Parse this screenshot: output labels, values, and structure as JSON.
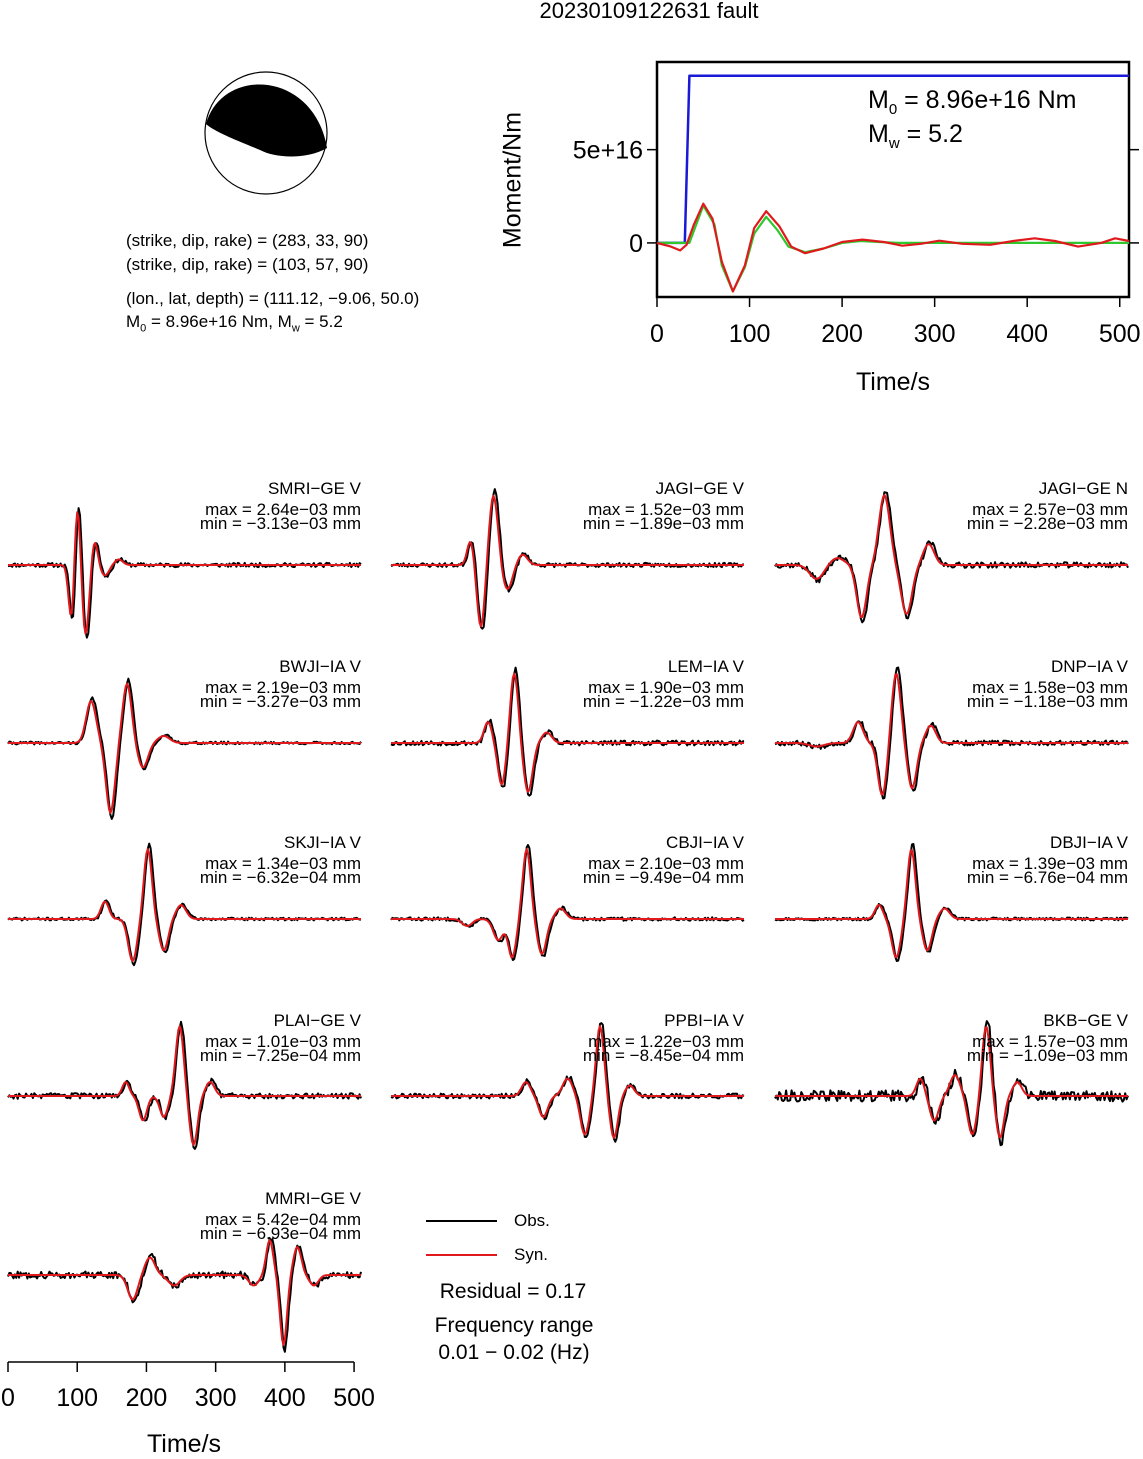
{
  "title": "20230109122631 fault",
  "mechanism": {
    "nodal_plane_1": "(strike, dip, rake) = (283, 33, 90)",
    "nodal_plane_2": "(strike, dip, rake) = (103, 57, 90)",
    "location": "(lon., lat, depth) = (111.12, −9.06, 50.0)",
    "moment_prefix": "M",
    "moment_sub": "0",
    "moment_mid": " = 8.96e+16 Nm, M",
    "mw_sub": "w",
    "mw_val": " = 5.2"
  },
  "stf_panel": {
    "m0_label": "M",
    "m0_sub": "0",
    "m0_value": " = 8.96e+16 Nm",
    "mw_label": "M",
    "mw_sub": "w",
    "mw_value": " = 5.2"
  },
  "legend": {
    "obs": "Obs.",
    "syn": "Syn.",
    "residual": "Residual = 0.17",
    "freq_title": "Frequency range",
    "freq_value": "0.01 − 0.02 (Hz)"
  },
  "colors": {
    "observed": "#000000",
    "synthetic": "#e0191d",
    "cumulative_moment": "#1a1ad6",
    "moment_rate_green": "#2ec82e",
    "moment_rate_red": "#e0191d",
    "beachball_fill": "#000000"
  },
  "chart_data": [
    {
      "type": "line",
      "title": "",
      "xlabel": "Time/s",
      "ylabel": "Moment/Nm",
      "xlim": [
        0,
        510
      ],
      "ylim": [
        -2.9e+16,
        9.7e+16
      ],
      "x_ticks": [
        0,
        100,
        200,
        300,
        400,
        500
      ],
      "y_ticks": [
        {
          "value": 0,
          "label": "0"
        },
        {
          "value": 5e+16,
          "label": "5e+16"
        }
      ],
      "series": [
        {
          "color": "#1a1ad6",
          "points": [
            [
              0,
              0
            ],
            [
              30,
              0
            ],
            [
              35,
              8.96e+16
            ],
            [
              510,
              8.96e+16
            ]
          ]
        },
        {
          "color": "#2ec82e",
          "points": [
            [
              0,
              0
            ],
            [
              35,
              0
            ],
            [
              50,
              2e+16
            ],
            [
              62,
              1e+16
            ],
            [
              70,
              -1.2e+16
            ],
            [
              82,
              -2.6e+16
            ],
            [
              95,
              -1.3e+16
            ],
            [
              105,
              5000000000000000.0
            ],
            [
              118,
              1.4e+16
            ],
            [
              130,
              7000000000000000.0
            ],
            [
              142,
              -2000000000000000.0
            ],
            [
              160,
              -5000000000000000.0
            ],
            [
              180,
              -3000000000000000.0
            ],
            [
              200,
              0
            ],
            [
              220,
              1000000000000000.0
            ],
            [
              240,
              500000000000000.0
            ],
            [
              260,
              0
            ],
            [
              300,
              0
            ],
            [
              510,
              0
            ]
          ]
        },
        {
          "color": "#e0191d",
          "points": [
            [
              0,
              0
            ],
            [
              15,
              -2000000000000000.0
            ],
            [
              25,
              -4000000000000000.0
            ],
            [
              32,
              -1000000000000000.0
            ],
            [
              40,
              1e+16
            ],
            [
              50,
              2.1e+16
            ],
            [
              60,
              1.3e+16
            ],
            [
              70,
              -1e+16
            ],
            [
              82,
              -2.6e+16
            ],
            [
              95,
              -1.2e+16
            ],
            [
              105,
              8000000000000000.0
            ],
            [
              118,
              1.7e+16
            ],
            [
              132,
              9000000000000000.0
            ],
            [
              145,
              -2000000000000000.0
            ],
            [
              160,
              -5500000000000000.0
            ],
            [
              180,
              -3000000000000000.0
            ],
            [
              200,
              500000000000000.0
            ],
            [
              222,
              1800000000000000.0
            ],
            [
              245,
              500000000000000.0
            ],
            [
              265,
              -1500000000000000.0
            ],
            [
              285,
              -500000000000000.0
            ],
            [
              305,
              1200000000000000.0
            ],
            [
              330,
              -500000000000000.0
            ],
            [
              360,
              -1000000000000000.0
            ],
            [
              385,
              1000000000000000.0
            ],
            [
              408,
              2500000000000000.0
            ],
            [
              430,
              1000000000000000.0
            ],
            [
              455,
              -2000000000000000.0
            ],
            [
              480,
              0
            ],
            [
              495,
              2500000000000000.0
            ],
            [
              510,
              1000000000000000.0
            ]
          ]
        }
      ]
    },
    {
      "type": "line",
      "title": "",
      "xlabel": "Time/s",
      "xlim": [
        0,
        510
      ],
      "x_ticks": [
        0,
        100,
        200,
        300,
        400,
        500
      ],
      "series_names": [
        "Obs.",
        "Syn."
      ],
      "traces": [
        {
          "station": "SMRI−GE V",
          "max": "max = 2.64e−03 mm",
          "min": "min = −3.13e−03 mm",
          "wavelets": [
            {
              "t": 92,
              "a": -0.85,
              "w": 6
            },
            {
              "t": 100,
              "a": 0.95,
              "w": 6
            },
            {
              "t": 112,
              "a": -1.0,
              "w": 7
            },
            {
              "t": 125,
              "a": 0.35,
              "w": 6
            },
            {
              "t": 140,
              "a": -0.15,
              "w": 8
            },
            {
              "t": 160,
              "a": 0.08,
              "w": 8
            }
          ],
          "obs_noise": 0.03,
          "seed": 11
        },
        {
          "station": "JAGI−GE V",
          "max": "max = 1.52e−03 mm",
          "min": "min = −1.89e−03 mm",
          "wavelets": [
            {
              "t": 115,
              "a": 0.35,
              "w": 7
            },
            {
              "t": 130,
              "a": -0.9,
              "w": 8
            },
            {
              "t": 148,
              "a": 1.0,
              "w": 9
            },
            {
              "t": 168,
              "a": -0.35,
              "w": 10
            },
            {
              "t": 190,
              "a": 0.15,
              "w": 10
            }
          ],
          "obs_noise": 0.03,
          "seed": 23
        },
        {
          "station": "JAGI−GE N",
          "max": "max = 2.57e−03 mm",
          "min": "min = −2.28e−03 mm",
          "wavelets": [
            {
              "t": 60,
              "a": -0.2,
              "w": 14
            },
            {
              "t": 90,
              "a": 0.1,
              "w": 14
            },
            {
              "t": 125,
              "a": -0.75,
              "w": 10
            },
            {
              "t": 158,
              "a": 1.0,
              "w": 11
            },
            {
              "t": 190,
              "a": -0.7,
              "w": 11
            },
            {
              "t": 222,
              "a": 0.3,
              "w": 11
            }
          ],
          "obs_noise": 0.04,
          "seed": 37
        },
        {
          "station": "BWJI−IA V",
          "max": "max = 2.19e−03 mm",
          "min": "min = −3.27e−03 mm",
          "wavelets": [
            {
              "t": 120,
              "a": 0.6,
              "w": 10
            },
            {
              "t": 148,
              "a": -1.0,
              "w": 9
            },
            {
              "t": 172,
              "a": 0.85,
              "w": 9
            },
            {
              "t": 195,
              "a": -0.35,
              "w": 10
            },
            {
              "t": 225,
              "a": 0.1,
              "w": 12
            }
          ],
          "obs_noise": 0.02,
          "seed": 41
        },
        {
          "station": "LEM−IA V",
          "max": "max = 1.90e−03 mm",
          "min": "min = −1.22e−03 mm",
          "wavelets": [
            {
              "t": 140,
              "a": 0.3,
              "w": 8
            },
            {
              "t": 160,
              "a": -0.6,
              "w": 8
            },
            {
              "t": 178,
              "a": 1.0,
              "w": 8
            },
            {
              "t": 198,
              "a": -0.7,
              "w": 9
            },
            {
              "t": 225,
              "a": 0.15,
              "w": 10
            }
          ],
          "obs_noise": 0.035,
          "seed": 53
        },
        {
          "station": "DNP−IA V",
          "max": "max = 1.58e−03 mm",
          "min": "min = −1.18e−03 mm",
          "wavelets": [
            {
              "t": 60,
              "a": -0.05,
              "w": 15
            },
            {
              "t": 120,
              "a": 0.3,
              "w": 10
            },
            {
              "t": 155,
              "a": -0.75,
              "w": 9
            },
            {
              "t": 175,
              "a": 1.0,
              "w": 9
            },
            {
              "t": 198,
              "a": -0.65,
              "w": 9
            },
            {
              "t": 225,
              "a": 0.25,
              "w": 10
            }
          ],
          "obs_noise": 0.035,
          "seed": 67
        },
        {
          "station": "SKJI−IA V",
          "max": "max = 1.34e−03 mm",
          "min": "min = −6.32e−04 mm",
          "wavelets": [
            {
              "t": 140,
              "a": 0.25,
              "w": 8
            },
            {
              "t": 180,
              "a": -0.6,
              "w": 9
            },
            {
              "t": 202,
              "a": 1.0,
              "w": 8
            },
            {
              "t": 225,
              "a": -0.45,
              "w": 9
            },
            {
              "t": 250,
              "a": 0.2,
              "w": 10
            }
          ],
          "obs_noise": 0.02,
          "seed": 71
        },
        {
          "station": "CBJI−IA V",
          "max": "max = 2.10e−03 mm",
          "min": "min = −9.49e−04 mm",
          "wavelets": [
            {
              "t": 110,
              "a": -0.1,
              "w": 10
            },
            {
              "t": 155,
              "a": -0.3,
              "w": 10
            },
            {
              "t": 175,
              "a": -0.55,
              "w": 8
            },
            {
              "t": 196,
              "a": 1.0,
              "w": 8
            },
            {
              "t": 218,
              "a": -0.5,
              "w": 9
            },
            {
              "t": 245,
              "a": 0.15,
              "w": 10
            }
          ],
          "obs_noise": 0.025,
          "seed": 83
        },
        {
          "station": "DBJI−IA V",
          "max": "max = 1.39e−03 mm",
          "min": "min = −6.76e−04 mm",
          "wavelets": [
            {
              "t": 150,
              "a": 0.2,
              "w": 8
            },
            {
              "t": 175,
              "a": -0.55,
              "w": 9
            },
            {
              "t": 197,
              "a": 1.0,
              "w": 8
            },
            {
              "t": 220,
              "a": -0.45,
              "w": 9
            },
            {
              "t": 245,
              "a": 0.15,
              "w": 10
            }
          ],
          "obs_noise": 0.02,
          "seed": 97
        },
        {
          "station": "PLAI−GE V",
          "max": "max = 1.01e−03 mm",
          "min": "min = −7.25e−04 mm",
          "wavelets": [
            {
              "t": 170,
              "a": 0.2,
              "w": 7
            },
            {
              "t": 195,
              "a": -0.35,
              "w": 8
            },
            {
              "t": 225,
              "a": -0.3,
              "w": 8
            },
            {
              "t": 248,
              "a": 1.0,
              "w": 8
            },
            {
              "t": 268,
              "a": -0.7,
              "w": 8
            },
            {
              "t": 292,
              "a": 0.2,
              "w": 9
            }
          ],
          "obs_noise": 0.04,
          "seed": 103
        },
        {
          "station": "PPBI−IA V",
          "max": "max = 1.22e−03 mm",
          "min": "min = −8.45e−04 mm",
          "wavelets": [
            {
              "t": 195,
              "a": 0.2,
              "w": 9
            },
            {
              "t": 220,
              "a": -0.3,
              "w": 9
            },
            {
              "t": 255,
              "a": 0.25,
              "w": 10
            },
            {
              "t": 280,
              "a": -0.55,
              "w": 9
            },
            {
              "t": 302,
              "a": 1.0,
              "w": 8
            },
            {
              "t": 322,
              "a": -0.6,
              "w": 8
            },
            {
              "t": 345,
              "a": 0.15,
              "w": 9
            }
          ],
          "obs_noise": 0.035,
          "seed": 109
        },
        {
          "station": "BKB−GE V",
          "max": "max = 1.57e−03 mm",
          "min": "min = −1.09e−03 mm",
          "wavelets": [
            {
              "t": 210,
              "a": 0.25,
              "w": 8
            },
            {
              "t": 230,
              "a": -0.35,
              "w": 9
            },
            {
              "t": 260,
              "a": 0.3,
              "w": 10
            },
            {
              "t": 285,
              "a": -0.55,
              "w": 9
            },
            {
              "t": 305,
              "a": 1.0,
              "w": 8
            },
            {
              "t": 325,
              "a": -0.6,
              "w": 8
            },
            {
              "t": 350,
              "a": 0.2,
              "w": 9
            }
          ],
          "obs_noise": 0.08,
          "seed": 113
        },
        {
          "station": "MMRI−GE V",
          "max": "max = 5.42e−04 mm",
          "min": "min = −6.93e−04 mm",
          "wavelets": [
            {
              "t": 180,
              "a": -0.35,
              "w": 10
            },
            {
              "t": 205,
              "a": 0.25,
              "w": 10
            },
            {
              "t": 240,
              "a": -0.15,
              "w": 12
            },
            {
              "t": 355,
              "a": -0.15,
              "w": 10
            },
            {
              "t": 378,
              "a": 0.5,
              "w": 7
            },
            {
              "t": 398,
              "a": -1.0,
              "w": 7
            },
            {
              "t": 418,
              "a": 0.4,
              "w": 8
            },
            {
              "t": 442,
              "a": -0.15,
              "w": 9
            }
          ],
          "obs_noise": 0.05,
          "seed": 127
        }
      ]
    }
  ]
}
